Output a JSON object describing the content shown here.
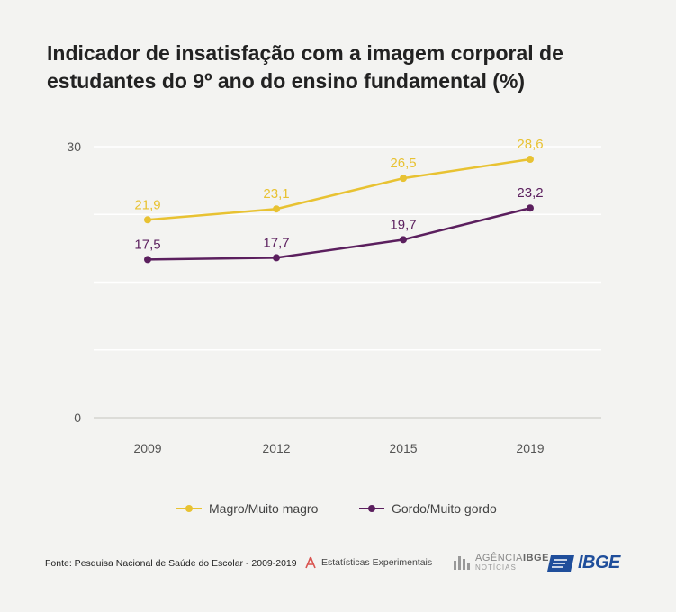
{
  "title": "Indicador de insatisfação com a imagem corporal de estudantes do 9º ano do ensino fundamental (%)",
  "chart_data": {
    "type": "line",
    "title": "Indicador de insatisfação com a imagem corporal de estudantes do 9º ano do ensino fundamental (%)",
    "categories": [
      "2009",
      "2012",
      "2015",
      "2019"
    ],
    "ylim": [
      0,
      30
    ],
    "yticks": [
      "0",
      "30"
    ],
    "grid": true,
    "legend": "bottom",
    "series": [
      {
        "name": "Magro/Muito magro",
        "values": [
          21.9,
          23.1,
          26.5,
          28.6
        ],
        "labels": [
          "21,9",
          "23,1",
          "26,5",
          "28,6"
        ],
        "color": "#e8c232"
      },
      {
        "name": "Gordo/Muito gordo",
        "values": [
          17.5,
          17.7,
          19.7,
          23.2
        ],
        "labels": [
          "17,5",
          "17,7",
          "19,7",
          "23,2"
        ],
        "color": "#5b1f5e"
      }
    ]
  },
  "footer": {
    "source": "Fonte: Pesquisa Nacional de Saúde do Escolar - 2009-2019",
    "experimental": "Estatísticas Experimentais",
    "agencia_brand": "AGÊNCIA",
    "agencia_bold": "IBGE",
    "agencia_sub": "NOTÍCIAS",
    "ibge_logo": "IBGE",
    "icons": [
      "experimental-icon",
      "agencia-logo-icon",
      "ibge-logo-icon"
    ]
  }
}
